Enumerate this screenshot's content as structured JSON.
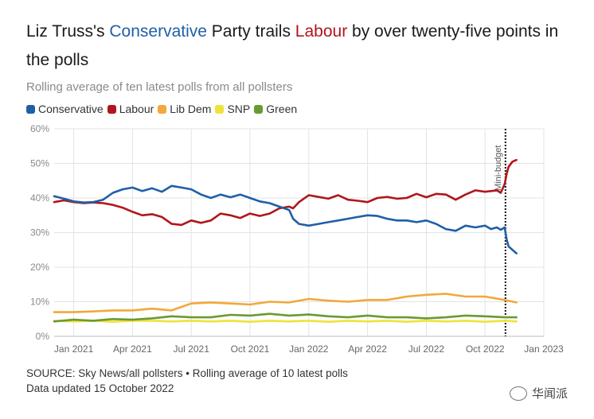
{
  "title": {
    "part1": "Liz Truss's ",
    "con": "Conservative",
    "part2": " Party trails ",
    "lab": "Labour",
    "part3": " by over twenty-five points in the polls"
  },
  "subtitle": "Rolling average of ten latest polls from all pollsters",
  "source_line1": "SOURCE: Sky News/all pollsters • Rolling average of 10 latest polls",
  "source_line2": "Data updated 15 October 2022",
  "watermark": "华闻派",
  "colors": {
    "conservative": "#1f5fa6",
    "labour": "#b0161c",
    "libdem": "#f2a83b",
    "snp": "#f0e23c",
    "green": "#6a9a32",
    "grid": "#e3e3e3",
    "axis_text": "#8a8a8a"
  },
  "chart_data": {
    "type": "line",
    "title": "Liz Truss's Conservative Party trails Labour by over twenty-five points in the polls",
    "subtitle": "Rolling average of ten latest polls from all pollsters",
    "xlabel": "",
    "ylabel": "",
    "x_unit": "months since 2020-12-01",
    "xlim": [
      0,
      25
    ],
    "ylim": [
      0,
      60
    ],
    "yticks": [
      0,
      10,
      20,
      30,
      40,
      50,
      60
    ],
    "ytick_labels": [
      "0%",
      "10%",
      "20%",
      "30%",
      "40%",
      "50%",
      "60%"
    ],
    "xticks": [
      1,
      4,
      7,
      10,
      13,
      16,
      19,
      22,
      25
    ],
    "xtick_labels": [
      "Jan 2021",
      "Apr 2021",
      "Jul 2021",
      "Oct 2021",
      "Jan 2022",
      "Apr 2022",
      "Jul 2022",
      "Oct 2022",
      "Jan 2023"
    ],
    "grid": true,
    "legend_position": "top-left",
    "annotation": {
      "x": 23.0,
      "label": "Mini-budget"
    },
    "series": [
      {
        "name": "Conservative",
        "color": "#1f5fa6",
        "x": [
          0,
          0.5,
          1,
          1.5,
          2,
          2.5,
          3,
          3.5,
          4,
          4.5,
          5,
          5.5,
          6,
          6.5,
          7,
          7.5,
          8,
          8.5,
          9,
          9.5,
          10,
          10.5,
          11,
          11.5,
          12,
          12.2,
          12.5,
          13,
          13.5,
          14,
          14.5,
          15,
          15.5,
          16,
          16.5,
          17,
          17.5,
          18,
          18.5,
          19,
          19.5,
          20,
          20.5,
          21,
          21.5,
          22,
          22.3,
          22.6,
          22.8,
          23.0,
          23.1,
          23.2,
          23.4,
          23.6
        ],
        "values": [
          40.5,
          39.8,
          39.0,
          38.7,
          38.8,
          39.5,
          41.5,
          42.5,
          43.0,
          42.0,
          42.8,
          41.8,
          43.5,
          43.0,
          42.5,
          41.0,
          40.0,
          41.0,
          40.2,
          41.0,
          40.0,
          39.0,
          38.5,
          37.5,
          36.5,
          34.0,
          32.5,
          32.0,
          32.5,
          33.0,
          33.5,
          34.0,
          34.5,
          35.0,
          34.8,
          34.0,
          33.5,
          33.5,
          33.0,
          33.5,
          32.5,
          31.0,
          30.5,
          32.0,
          31.5,
          32.0,
          31.0,
          31.5,
          30.8,
          31.5,
          28.0,
          26.0,
          25.0,
          24.0
        ]
      },
      {
        "name": "Labour",
        "color": "#b0161c",
        "x": [
          0,
          0.5,
          1,
          1.5,
          2,
          2.5,
          3,
          3.5,
          4,
          4.5,
          5,
          5.5,
          6,
          6.5,
          7,
          7.5,
          8,
          8.5,
          9,
          9.5,
          10,
          10.5,
          11,
          11.5,
          12,
          12.2,
          12.5,
          13,
          13.5,
          14,
          14.5,
          15,
          15.5,
          16,
          16.5,
          17,
          17.5,
          18,
          18.5,
          19,
          19.5,
          20,
          20.5,
          21,
          21.5,
          22,
          22.3,
          22.6,
          22.8,
          23.0,
          23.1,
          23.2,
          23.4,
          23.6
        ],
        "values": [
          38.8,
          39.3,
          38.8,
          38.5,
          38.7,
          38.5,
          38.0,
          37.2,
          36.0,
          35.0,
          35.3,
          34.5,
          32.5,
          32.2,
          33.5,
          32.8,
          33.5,
          35.5,
          35.0,
          34.2,
          35.5,
          34.8,
          35.5,
          37.0,
          37.5,
          37.0,
          38.8,
          40.8,
          40.3,
          39.8,
          40.8,
          39.5,
          39.2,
          38.8,
          40.0,
          40.3,
          39.8,
          40.0,
          41.2,
          40.2,
          41.2,
          41.0,
          39.5,
          41.0,
          42.2,
          41.8,
          42.0,
          42.2,
          41.5,
          44.0,
          47.0,
          49.0,
          50.5,
          51.0
        ]
      },
      {
        "name": "Lib Dem",
        "color": "#f2a83b",
        "x": [
          0,
          1,
          2,
          3,
          4,
          5,
          6,
          7,
          8,
          9,
          10,
          11,
          12,
          13,
          14,
          15,
          16,
          17,
          18,
          19,
          20,
          21,
          22,
          23,
          23.6
        ],
        "values": [
          7.0,
          7.0,
          7.2,
          7.5,
          7.5,
          8.0,
          7.5,
          9.5,
          9.8,
          9.5,
          9.2,
          10.0,
          9.8,
          10.8,
          10.3,
          10.0,
          10.5,
          10.5,
          11.5,
          12.0,
          12.3,
          11.5,
          11.5,
          10.5,
          9.8
        ]
      },
      {
        "name": "SNP",
        "color": "#f0e23c",
        "x": [
          0,
          1,
          2,
          3,
          4,
          5,
          6,
          7,
          8,
          9,
          10,
          11,
          12,
          13,
          14,
          15,
          16,
          17,
          18,
          19,
          20,
          21,
          22,
          23,
          23.6
        ],
        "values": [
          4.5,
          4.3,
          4.5,
          4.2,
          4.5,
          4.5,
          4.3,
          4.5,
          4.3,
          4.5,
          4.2,
          4.5,
          4.3,
          4.5,
          4.2,
          4.5,
          4.3,
          4.5,
          4.2,
          4.5,
          4.3,
          4.5,
          4.2,
          4.5,
          4.3
        ]
      },
      {
        "name": "Green",
        "color": "#6a9a32",
        "x": [
          0,
          1,
          2,
          3,
          4,
          5,
          6,
          7,
          8,
          9,
          10,
          11,
          12,
          13,
          14,
          15,
          16,
          17,
          18,
          19,
          20,
          21,
          22,
          23,
          23.6
        ],
        "values": [
          4.3,
          4.8,
          4.5,
          5.0,
          4.8,
          5.2,
          5.8,
          5.5,
          5.5,
          6.2,
          6.0,
          6.5,
          6.0,
          6.3,
          5.8,
          5.5,
          6.0,
          5.5,
          5.5,
          5.2,
          5.5,
          6.0,
          5.8,
          5.5,
          5.5
        ]
      }
    ]
  }
}
